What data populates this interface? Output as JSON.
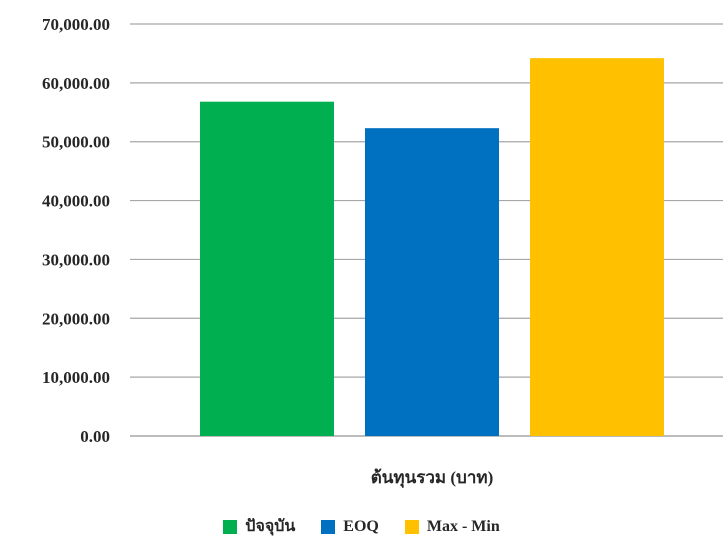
{
  "chart_data": {
    "type": "bar",
    "categories": [
      "ต้นทุนรวม (บาท)"
    ],
    "series": [
      {
        "name": "ปัจจุบัน",
        "values": [
          56800
        ],
        "color": "#00B050"
      },
      {
        "name": "EOQ",
        "values": [
          52300
        ],
        "color": "#0070C0"
      },
      {
        "name": "Max - Min",
        "values": [
          64200
        ],
        "color": "#FFC000"
      }
    ],
    "ylim": [
      0,
      70000
    ],
    "y_ticks": [
      "0.00",
      "10,000.00",
      "20,000.00",
      "30,000.00",
      "40,000.00",
      "50,000.00",
      "60,000.00",
      "70,000.00"
    ],
    "grid": true,
    "legend_position": "bottom",
    "gridline_color": "#A6A6A6"
  }
}
